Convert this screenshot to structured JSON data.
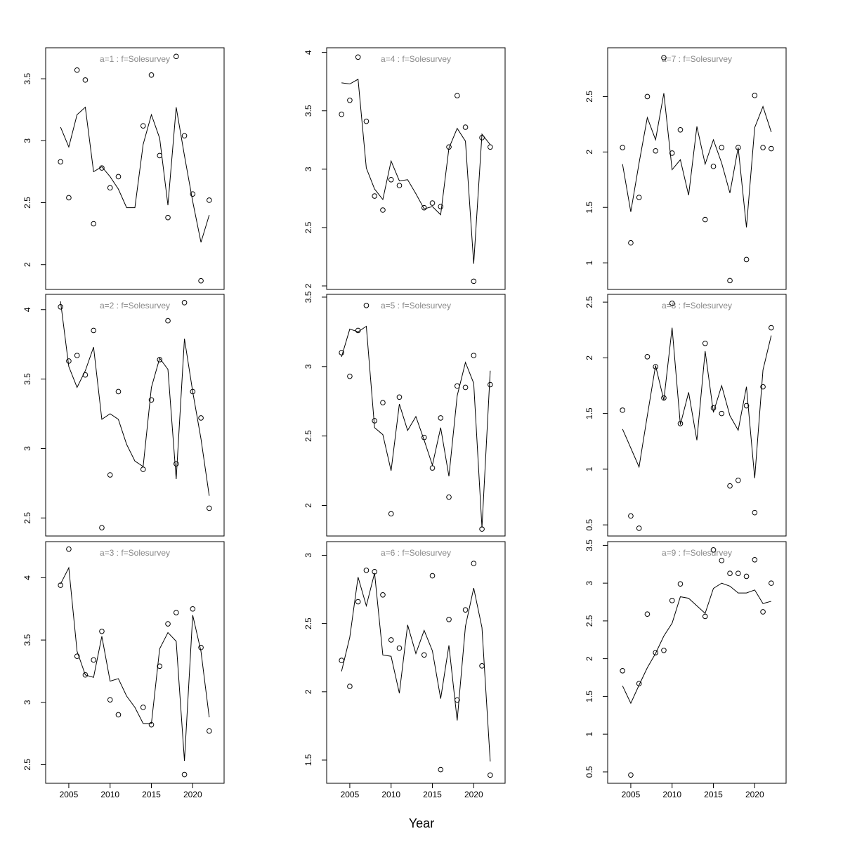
{
  "x_label": "Year",
  "chart_data": [
    {
      "type": "line",
      "title": "a=1 : f=Solesurvey",
      "x": [
        2004,
        2005,
        2006,
        2007,
        2008,
        2009,
        2010,
        2011,
        2012,
        2013,
        2014,
        2015,
        2016,
        2017,
        2018,
        2019,
        2020,
        2021,
        2022
      ],
      "xlim": [
        2002.2,
        2023.8
      ],
      "ylim": [
        1.8,
        3.75
      ],
      "yticks": [
        2,
        2.5,
        3,
        3.5
      ],
      "series": [
        {
          "color": "#000000",
          "marker": "circle",
          "values": [
            2.83,
            2.54,
            3.57,
            3.49,
            2.33,
            2.78,
            2.62,
            2.71,
            null,
            null,
            3.12,
            3.53,
            2.88,
            2.38,
            3.68,
            3.04,
            2.57,
            1.87,
            2.52
          ]
        },
        {
          "color": "#000000",
          "marker": "none",
          "values": [
            3.11,
            2.95,
            3.21,
            3.27,
            2.75,
            2.79,
            2.71,
            2.61,
            2.46,
            2.46,
            2.97,
            3.21,
            3.02,
            2.48,
            3.27,
            2.88,
            2.51,
            2.18,
            2.4
          ]
        }
      ]
    },
    {
      "type": "line",
      "title": "a=2 : f=Solesurvey",
      "x": [
        2004,
        2005,
        2006,
        2007,
        2008,
        2009,
        2010,
        2011,
        2012,
        2013,
        2014,
        2015,
        2016,
        2017,
        2018,
        2019,
        2020,
        2021,
        2022
      ],
      "xlim": [
        2002.2,
        2023.8
      ],
      "ylim": [
        2.37,
        4.11
      ],
      "yticks": [
        2.5,
        3,
        3.5,
        4
      ],
      "series": [
        {
          "color": "#000000",
          "marker": "circle",
          "values": [
            4.02,
            3.63,
            3.67,
            3.53,
            3.85,
            2.43,
            2.81,
            3.41,
            null,
            null,
            2.85,
            3.35,
            3.64,
            3.92,
            2.89,
            4.05,
            3.41,
            3.22,
            2.57
          ]
        },
        {
          "color": "#000000",
          "marker": "none",
          "values": [
            4.06,
            3.59,
            3.44,
            3.56,
            3.73,
            3.21,
            3.25,
            3.21,
            3.03,
            2.91,
            2.87,
            3.44,
            3.65,
            3.57,
            2.78,
            3.79,
            3.41,
            3.07,
            2.66
          ]
        }
      ]
    },
    {
      "type": "line",
      "title": "a=3 : f=Solesurvey",
      "x": [
        2004,
        2005,
        2006,
        2007,
        2008,
        2009,
        2010,
        2011,
        2012,
        2013,
        2014,
        2015,
        2016,
        2017,
        2018,
        2019,
        2020,
        2021,
        2022
      ],
      "xlim": [
        2002.2,
        2023.8
      ],
      "xticks": [
        2005,
        2010,
        2015,
        2020
      ],
      "ylim": [
        2.35,
        4.29
      ],
      "yticks": [
        2.5,
        3,
        3.5,
        4
      ],
      "series": [
        {
          "color": "#000000",
          "marker": "circle",
          "values": [
            3.94,
            4.23,
            3.37,
            3.22,
            3.34,
            3.57,
            3.02,
            2.9,
            null,
            null,
            2.96,
            2.82,
            3.29,
            3.63,
            3.72,
            2.42,
            3.75,
            3.44,
            2.77
          ]
        },
        {
          "color": "#000000",
          "marker": "none",
          "values": [
            3.95,
            4.08,
            3.41,
            3.22,
            3.2,
            3.53,
            3.17,
            3.19,
            3.05,
            2.96,
            2.83,
            2.83,
            3.43,
            3.56,
            3.49,
            2.53,
            3.7,
            3.41,
            2.88
          ]
        }
      ]
    },
    {
      "type": "line",
      "title": "a=4 : f=Solesurvey",
      "x": [
        2004,
        2005,
        2006,
        2007,
        2008,
        2009,
        2010,
        2011,
        2012,
        2013,
        2014,
        2015,
        2016,
        2017,
        2018,
        2019,
        2020,
        2021,
        2022
      ],
      "xlim": [
        2002.2,
        2023.8
      ],
      "ylim": [
        1.97,
        4.04
      ],
      "yticks": [
        2,
        2.5,
        3,
        3.5,
        4
      ],
      "series": [
        {
          "color": "#000000",
          "marker": "circle",
          "values": [
            3.47,
            3.59,
            3.96,
            3.41,
            2.77,
            2.65,
            2.91,
            2.86,
            null,
            null,
            2.67,
            2.71,
            2.68,
            3.19,
            3.63,
            3.36,
            2.04,
            3.27,
            3.19
          ]
        },
        {
          "color": "#000000",
          "marker": "none",
          "values": [
            3.74,
            3.73,
            3.77,
            3.01,
            2.83,
            2.74,
            3.07,
            2.9,
            2.91,
            2.79,
            2.66,
            2.68,
            2.61,
            3.18,
            3.35,
            3.24,
            2.19,
            3.3,
            3.21
          ]
        }
      ]
    },
    {
      "type": "line",
      "title": "a=5 : f=Solesurvey",
      "x": [
        2004,
        2005,
        2006,
        2007,
        2008,
        2009,
        2010,
        2011,
        2012,
        2013,
        2014,
        2015,
        2016,
        2017,
        2018,
        2019,
        2020,
        2021,
        2022
      ],
      "xlim": [
        2002.2,
        2023.8
      ],
      "ylim": [
        1.78,
        3.52
      ],
      "yticks": [
        2,
        2.5,
        3,
        3.5
      ],
      "series": [
        {
          "color": "#000000",
          "marker": "circle",
          "values": [
            3.1,
            2.93,
            3.26,
            3.44,
            2.61,
            2.74,
            1.94,
            2.78,
            null,
            null,
            2.49,
            2.27,
            2.63,
            2.06,
            2.86,
            2.85,
            3.08,
            1.83,
            2.87
          ]
        },
        {
          "color": "#000000",
          "marker": "none",
          "values": [
            3.07,
            3.27,
            3.25,
            3.29,
            2.56,
            2.51,
            2.25,
            2.73,
            2.54,
            2.64,
            2.47,
            2.29,
            2.56,
            2.21,
            2.79,
            3.03,
            2.88,
            1.84,
            2.97
          ]
        }
      ]
    },
    {
      "type": "line",
      "title": "a=6 : f=Solesurvey",
      "x": [
        2004,
        2005,
        2006,
        2007,
        2008,
        2009,
        2010,
        2011,
        2012,
        2013,
        2014,
        2015,
        2016,
        2017,
        2018,
        2019,
        2020,
        2021,
        2022
      ],
      "xlim": [
        2002.2,
        2023.8
      ],
      "xticks": [
        2005,
        2010,
        2015,
        2020
      ],
      "ylim": [
        1.33,
        3.1
      ],
      "yticks": [
        1.5,
        2,
        2.5,
        3
      ],
      "series": [
        {
          "color": "#000000",
          "marker": "circle",
          "values": [
            2.23,
            2.04,
            2.66,
            2.89,
            2.88,
            2.71,
            2.38,
            2.32,
            null,
            null,
            2.27,
            2.85,
            1.43,
            2.53,
            1.94,
            2.6,
            2.94,
            2.19,
            1.39
          ]
        },
        {
          "color": "#000000",
          "marker": "none",
          "values": [
            2.15,
            2.4,
            2.84,
            2.63,
            2.87,
            2.27,
            2.26,
            1.99,
            2.49,
            2.28,
            2.45,
            2.3,
            1.95,
            2.34,
            1.79,
            2.48,
            2.76,
            2.47,
            1.49
          ]
        }
      ]
    },
    {
      "type": "line",
      "title": "a=7 : f=Solesurvey",
      "x": [
        2004,
        2005,
        2006,
        2007,
        2008,
        2009,
        2010,
        2011,
        2012,
        2013,
        2014,
        2015,
        2016,
        2017,
        2018,
        2019,
        2020,
        2021,
        2022
      ],
      "xlim": [
        2002.2,
        2023.8
      ],
      "ylim": [
        0.76,
        2.94
      ],
      "yticks": [
        1,
        1.5,
        2,
        2.5
      ],
      "series": [
        {
          "color": "#000000",
          "marker": "circle",
          "values": [
            2.04,
            1.18,
            1.59,
            2.5,
            2.01,
            2.85,
            1.99,
            2.2,
            null,
            null,
            1.39,
            1.87,
            2.04,
            0.84,
            2.04,
            1.03,
            2.51,
            2.04,
            2.03
          ]
        },
        {
          "color": "#000000",
          "marker": "none",
          "values": [
            1.89,
            1.46,
            1.9,
            2.31,
            2.11,
            2.53,
            1.84,
            1.93,
            1.61,
            2.23,
            1.89,
            2.11,
            1.9,
            1.63,
            2.04,
            1.32,
            2.22,
            2.41,
            2.18
          ]
        }
      ]
    },
    {
      "type": "line",
      "title": "a=8 : f=Solesurvey",
      "x": [
        2004,
        2005,
        2006,
        2007,
        2008,
        2009,
        2010,
        2011,
        2012,
        2013,
        2014,
        2015,
        2016,
        2017,
        2018,
        2019,
        2020,
        2021,
        2022
      ],
      "xlim": [
        2002.2,
        2023.8
      ],
      "ylim": [
        0.4,
        2.57
      ],
      "yticks": [
        0.5,
        1,
        1.5,
        2,
        2.5
      ],
      "series": [
        {
          "color": "#000000",
          "marker": "circle",
          "values": [
            1.53,
            0.58,
            0.47,
            2.01,
            1.92,
            1.64,
            2.49,
            1.41,
            null,
            null,
            2.13,
            1.55,
            1.5,
            0.85,
            0.9,
            1.57,
            0.61,
            1.74,
            2.27
          ]
        },
        {
          "color": "#000000",
          "marker": "none",
          "values": [
            1.36,
            1.19,
            1.02,
            1.48,
            1.93,
            1.62,
            2.27,
            1.4,
            1.69,
            1.26,
            2.06,
            1.51,
            1.75,
            1.48,
            1.35,
            1.74,
            0.92,
            1.89,
            2.2
          ]
        }
      ]
    },
    {
      "type": "line",
      "title": "a=9 : f=Solesurvey",
      "x": [
        2004,
        2005,
        2006,
        2007,
        2008,
        2009,
        2010,
        2011,
        2012,
        2013,
        2014,
        2015,
        2016,
        2017,
        2018,
        2019,
        2020,
        2021,
        2022
      ],
      "xlim": [
        2002.2,
        2023.8
      ],
      "xticks": [
        2005,
        2010,
        2015,
        2020
      ],
      "ylim": [
        0.35,
        3.55
      ],
      "yticks": [
        0.5,
        1,
        1.5,
        2,
        2.5,
        3,
        3.5
      ],
      "series": [
        {
          "color": "#000000",
          "marker": "circle",
          "values": [
            1.84,
            0.46,
            1.67,
            2.59,
            2.08,
            2.11,
            2.77,
            2.99,
            null,
            null,
            2.56,
            3.44,
            3.3,
            3.13,
            3.13,
            3.09,
            3.31,
            2.62,
            3.0
          ]
        },
        {
          "color": "#000000",
          "marker": "none",
          "values": [
            1.64,
            1.41,
            1.65,
            1.88,
            2.07,
            2.3,
            2.47,
            2.82,
            2.8,
            2.7,
            2.6,
            2.93,
            3.0,
            2.96,
            2.87,
            2.87,
            2.91,
            2.73,
            2.76
          ]
        }
      ]
    }
  ]
}
